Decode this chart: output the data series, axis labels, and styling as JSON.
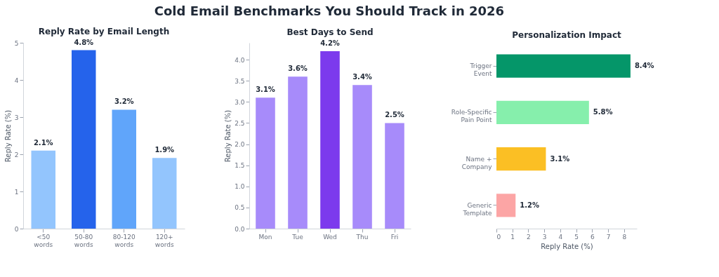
{
  "chart_data": [
    {
      "type": "bar",
      "annotations": [
        "Cold Email Benchmarks You Should Track in 2026"
      ],
      "title": "Reply Rate by Email Length",
      "ylabel": "Reply Rate (%)",
      "categories": [
        "<50\nwords",
        "50-80\nwords",
        "80-120\nwords",
        "120+\nwords"
      ],
      "values": [
        2.1,
        4.8,
        3.2,
        1.9
      ],
      "colors": [
        "#93c5fd",
        "#2563eb",
        "#60a5fa",
        "#93c5fd"
      ],
      "value_labels": [
        "2.1%",
        "4.8%",
        "3.2%",
        "1.9%"
      ],
      "ylim": [
        0,
        5
      ],
      "yticks": [
        0,
        1,
        2,
        3,
        4,
        5
      ],
      "grid": false
    },
    {
      "type": "bar",
      "title": "Best Days to Send",
      "ylabel": "Reply Rate (%)",
      "categories": [
        "Mon",
        "Tue",
        "Wed",
        "Thu",
        "Fri"
      ],
      "values": [
        3.1,
        3.6,
        4.2,
        3.4,
        2.5
      ],
      "colors": [
        "#a78bfa",
        "#a78bfa",
        "#7c3aed",
        "#a78bfa",
        "#a78bfa"
      ],
      "value_labels": [
        "3.1%",
        "3.6%",
        "4.2%",
        "3.4%",
        "2.5%"
      ],
      "ylim": [
        0,
        4.4
      ],
      "yticks": [
        {
          "value": 0,
          "label": "0.0"
        },
        {
          "value": 0.5,
          "label": "0.5"
        },
        {
          "value": 1,
          "label": "1.0"
        },
        {
          "value": 1.5,
          "label": "1.5"
        },
        {
          "value": 2,
          "label": "2.0"
        },
        {
          "value": 2.5,
          "label": "2.5"
        },
        {
          "value": 3,
          "label": "3.0"
        },
        {
          "value": 3.5,
          "label": "3.5"
        },
        {
          "value": 4,
          "label": "4.0"
        }
      ],
      "grid": false
    },
    {
      "type": "bar",
      "orientation": "horizontal",
      "title": "Personalization Impact",
      "xlabel": "Reply Rate (%)",
      "categories": [
        "Trigger\nEvent",
        "Role-Specific\nPain Point",
        "Name +\nCompany",
        "Generic\nTemplate"
      ],
      "values": [
        8.4,
        5.8,
        3.1,
        1.2
      ],
      "colors": [
        "#059669",
        "#86efac",
        "#fbbf24",
        "#fca5a5"
      ],
      "value_labels": [
        "8.4%",
        "5.8%",
        "3.1%",
        "1.2%"
      ],
      "xlim": [
        0,
        8.8
      ],
      "xticks": [
        0,
        1,
        2,
        3,
        4,
        5,
        6,
        7,
        8
      ],
      "grid": false
    }
  ]
}
